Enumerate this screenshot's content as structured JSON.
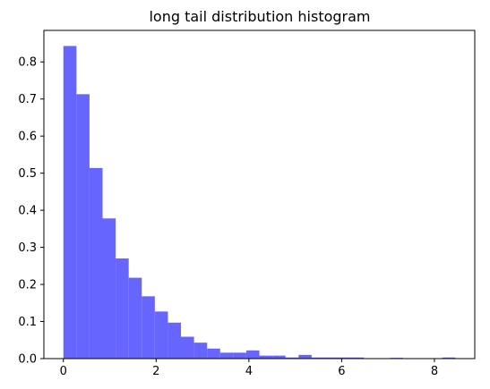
{
  "chart_data": {
    "type": "bar",
    "title": "long tail distribution histogram",
    "xlabel": "",
    "ylabel": "",
    "bar_color": "#6666ff",
    "bin_start": 0.0,
    "bin_width": 0.2817,
    "values": [
      0.843,
      0.713,
      0.514,
      0.378,
      0.27,
      0.218,
      0.168,
      0.127,
      0.097,
      0.059,
      0.043,
      0.027,
      0.016,
      0.016,
      0.022,
      0.008,
      0.008,
      0.003,
      0.01,
      0.003,
      0.003,
      0.003,
      0.003,
      0.0,
      0.0,
      0.002,
      0.0,
      0.0,
      0.0,
      0.003
    ],
    "xlim": [
      -0.42,
      8.87
    ],
    "ylim": [
      0,
      0.885
    ],
    "xticks": [
      0,
      2,
      4,
      6,
      8
    ],
    "xtick_labels": [
      "0",
      "2",
      "4",
      "6",
      "8"
    ],
    "yticks": [
      0.0,
      0.1,
      0.2,
      0.3,
      0.4,
      0.5,
      0.6,
      0.7,
      0.8
    ],
    "ytick_labels": [
      "0.0",
      "0.1",
      "0.2",
      "0.3",
      "0.4",
      "0.5",
      "0.6",
      "0.7",
      "0.8"
    ],
    "grid": false,
    "legend": "none"
  }
}
